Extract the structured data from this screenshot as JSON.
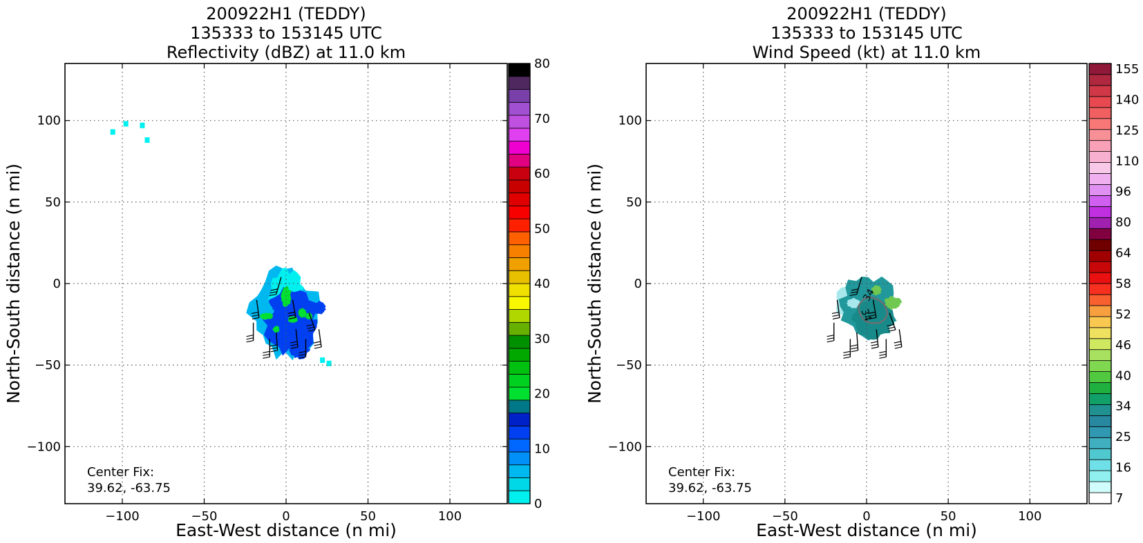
{
  "chart_data": [
    {
      "type": "heatmap",
      "title": [
        "200922H1 (TEDDY)",
        "135333 to 153145 UTC",
        "Reflectivity (dBZ) at 11.0 km"
      ],
      "xlabel": "East-West distance (n mi)",
      "ylabel": "North-South distance (n mi)",
      "xlim": [
        -135,
        135
      ],
      "ylim": [
        -135,
        135
      ],
      "xticks": [
        -100,
        -50,
        0,
        50,
        100
      ],
      "yticks": [
        -100,
        -50,
        0,
        50,
        100
      ],
      "xtick_labels": [
        "−100",
        "−50",
        "0",
        "50",
        "100"
      ],
      "ytick_labels": [
        "−100",
        "−50",
        "0",
        "50",
        "100"
      ],
      "grid": true,
      "annotation": [
        "Center Fix:",
        "39.62, -63.75"
      ],
      "colorbar": {
        "range": [
          0,
          80
        ],
        "tick_values": [
          0,
          10,
          20,
          30,
          40,
          50,
          60,
          70,
          80
        ],
        "tick_labels": [
          "0",
          "10",
          "20",
          "30",
          "40",
          "50",
          "60",
          "70",
          "80"
        ],
        "colors": [
          "#00f0f0",
          "#00d8e8",
          "#00b8f0",
          "#0090f8",
          "#0068ff",
          "#0040f0",
          "#0020c8",
          "#007888",
          "#00e030",
          "#00d020",
          "#00c010",
          "#00a800",
          "#009000",
          "#68b000",
          "#b0d800",
          "#f8f800",
          "#f0e000",
          "#e8c000",
          "#f0a000",
          "#f88000",
          "#ff6000",
          "#ff2000",
          "#f80000",
          "#e00000",
          "#c80000",
          "#c80010",
          "#e00080",
          "#f000d0",
          "#e040f0",
          "#c050e0",
          "#a050d0",
          "#7840a8",
          "#502860",
          "#000000"
        ]
      },
      "echo_colors": {
        "outer": "#00b8f0",
        "inner": "#0040f0",
        "core": "#00e030",
        "edge": "#00f0f0"
      },
      "echo_regions": [
        {
          "center": [
            -1,
            -20
          ],
          "radius": [
            18,
            25
          ],
          "fill": "#0060f8"
        }
      ],
      "small_echoes": [
        {
          "x": -106,
          "y": 93
        },
        {
          "x": -98,
          "y": 98
        },
        {
          "x": -88,
          "y": 97
        },
        {
          "x": -85,
          "y": 88
        },
        {
          "x": 22,
          "y": -47
        },
        {
          "x": 26,
          "y": -49
        }
      ]
    },
    {
      "type": "heatmap",
      "title": [
        "200922H1 (TEDDY)",
        "135333 to 153145 UTC",
        "Wind Speed (kt) at 11.0 km"
      ],
      "xlabel": "East-West distance (n mi)",
      "ylabel": "North-South distance (n mi)",
      "xlim": [
        -135,
        135
      ],
      "ylim": [
        -135,
        135
      ],
      "xticks": [
        -100,
        -50,
        0,
        50,
        100
      ],
      "yticks": [
        -100,
        -50,
        0,
        50,
        100
      ],
      "xtick_labels": [
        "−100",
        "−50",
        "0",
        "50",
        "100"
      ],
      "ytick_labels": [
        "−100",
        "−50",
        "0",
        "50",
        "100"
      ],
      "grid": true,
      "annotation": [
        "Center Fix:",
        "39.62, -63.75"
      ],
      "contour_labels": [
        "34",
        "34"
      ],
      "colorbar": {
        "range": [
          7,
          160
        ],
        "tick_values": [
          7,
          16,
          25,
          34,
          40,
          46,
          52,
          58,
          64,
          80,
          96,
          110,
          125,
          140,
          155
        ],
        "tick_labels": [
          "7",
          "16",
          "25",
          "34",
          "40",
          "46",
          "52",
          "58",
          "64",
          "80",
          "96",
          "110",
          "125",
          "140",
          "155"
        ],
        "colors": [
          "#ffffff",
          "#d0fcfc",
          "#90f0f0",
          "#70e0e8",
          "#50c8d0",
          "#40b0c0",
          "#3098b0",
          "#2888a0",
          "#209090",
          "#10a068",
          "#20b040",
          "#50c840",
          "#80d850",
          "#a8e060",
          "#d0e860",
          "#f0e060",
          "#f8c850",
          "#f8a040",
          "#f86030",
          "#f83020",
          "#e81010",
          "#c80808",
          "#a00000",
          "#700000",
          "#800040",
          "#a020b0",
          "#c030e0",
          "#d060f0",
          "#e090f0",
          "#f0b0f0",
          "#f8c8e8",
          "#f8b0d0",
          "#f8a0b8",
          "#f89098",
          "#f87878",
          "#f06060",
          "#e84850",
          "#d03848",
          "#b02840",
          "#901838"
        ]
      },
      "wind_colors": {
        "outer": "#50c0c8",
        "main": "#20989c",
        "inner": "#188a8a",
        "strong": "#70c850",
        "light": "#a8e8ec"
      }
    }
  ]
}
